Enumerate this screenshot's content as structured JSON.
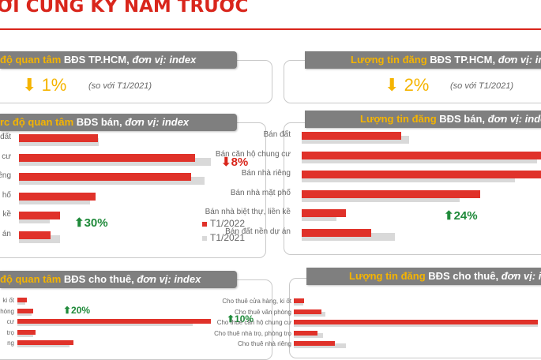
{
  "page": {
    "title": "ỚI CÙNG KỲ NĂM TRƯỚC"
  },
  "colors": {
    "t2022": "#e0322a",
    "t2021": "#d9d9d9",
    "accent": "#f5b400",
    "header": "#7f7f7f",
    "up": "#1f8a3a",
    "down": "#d9261c"
  },
  "panels": {
    "interest_hcm": {
      "h1": " độ quan tâm",
      "h2": " BĐS TP.HCM, ",
      "h3": "đơn vị: index",
      "arrow": "⬇",
      "value": "1%",
      "compare": "(so với T1/2021)"
    },
    "listing_hcm": {
      "h1": "Lượng tin đăng",
      "h2": " BĐS TP.HCM, ",
      "h3": "đơn vị: index",
      "arrow": "⬇",
      "value": "2%",
      "compare": "(so với T1/2021)"
    },
    "interest_sale": {
      "h1": "rc độ quan tâm",
      "h2": " BĐS bán, ",
      "h3": "đơn vị: index",
      "badge_down": "⬇8%",
      "badge_up": "⬆30%",
      "legend_2022": "T1/2022",
      "legend_2021": "T1/2021"
    },
    "listing_sale": {
      "h1": "Lượng tin đăng",
      "h2": " BĐS bán, ",
      "h3": "đơn vị: index",
      "badge_up": "⬆24%"
    },
    "interest_rent": {
      "h1": " độ quan tâm",
      "h2": " BĐS cho thuê, ",
      "h3": "đơn vị: index",
      "badge_a": "⬆20%",
      "badge_b": "⬆10%"
    },
    "listing_rent": {
      "h1": "Lượng tin đăng",
      "h2": " BĐS cho thuê, ",
      "h3": "đơn vị: index"
    }
  },
  "chart_data": [
    {
      "type": "bar",
      "title": "độ quan tâm BĐS bán, đơn vị: index",
      "categories": [
        "đất",
        "cư",
        "iêng",
        "hố",
        "kề",
        "án"
      ],
      "series": [
        {
          "name": "T1/2022",
          "values": [
            100,
            223,
            218,
            97,
            52,
            40
          ]
        },
        {
          "name": "T1/2021",
          "values": [
            101,
            243,
            235,
            90,
            39,
            52
          ]
        }
      ],
      "xlim": [
        0,
        250
      ],
      "legend": "right"
    },
    {
      "type": "bar",
      "title": "Lượng tin đăng BĐS bán, đơn vị: index",
      "categories": [
        "Bán đất",
        "Bán căn hộ chung cư",
        "Bán nhà riêng",
        "Bán nhà mặt phố",
        "Bán nhà biệt thự, liền kề",
        "Bán đất nền dự án"
      ],
      "series": [
        {
          "name": "T1/2022",
          "values": [
            63,
            155,
            156,
            113,
            28,
            44
          ]
        },
        {
          "name": "T1/2021",
          "values": [
            68,
            149,
            135,
            100,
            22,
            59
          ]
        }
      ],
      "xlim": [
        0,
        160
      ]
    },
    {
      "type": "bar",
      "title": "độ quan tâm BĐS cho thuê, đơn vị: index",
      "categories": [
        "ki ốt",
        "phòng",
        "cư",
        "trọ",
        "ng"
      ],
      "series": [
        {
          "name": "T1/2022",
          "values": [
            12,
            20,
            245,
            23,
            71
          ]
        },
        {
          "name": "T1/2021",
          "values": [
            10,
            18,
            222,
            20,
            66
          ]
        }
      ],
      "xlim": [
        0,
        250
      ]
    },
    {
      "type": "bar",
      "title": "Lượng tin đăng BĐS cho thuê, đơn vị: index",
      "categories": [
        "Cho thuê cửa hàng, ki ốt",
        "Cho thuê văn phòng",
        "Cho thuê căn hộ chung cư",
        "Cho thuê nhà trọ, phòng trọ",
        "Cho thuê nhà riêng"
      ],
      "series": [
        {
          "name": "T1/2022",
          "values": [
            9,
            24,
            209,
            20,
            35
          ]
        },
        {
          "name": "T1/2021",
          "values": [
            8,
            27,
            209,
            25,
            45
          ]
        }
      ],
      "xlim": [
        0,
        210
      ]
    }
  ]
}
